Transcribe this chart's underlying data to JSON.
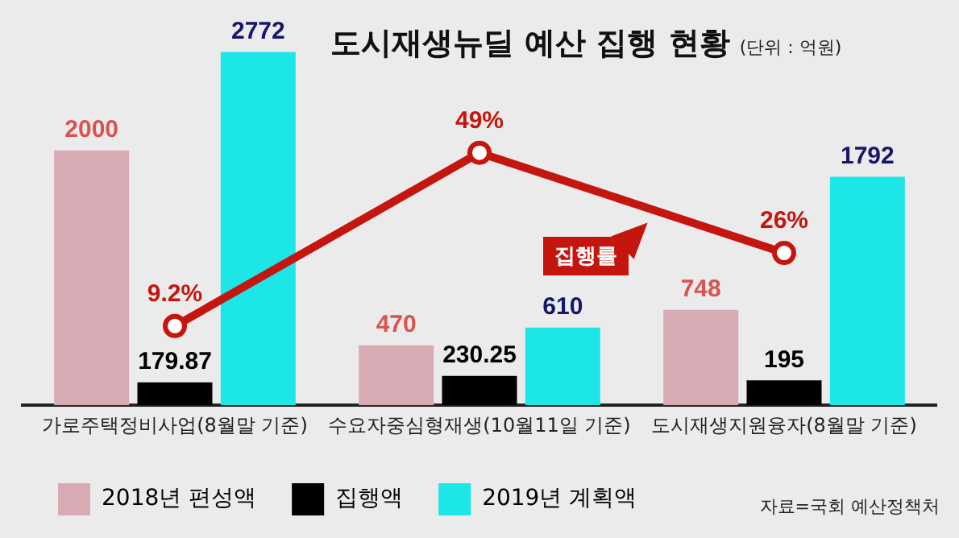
{
  "chart_data": {
    "type": "bar",
    "title": "도시재생뉴딜 예산 집행 현황",
    "subtitle": "(단위 : 억원)",
    "categories": [
      "가로주택정비사업(8월말 기준)",
      "수요자중심형재생(10월11일 기준)",
      "도시재생지원융자(8월말 기준)"
    ],
    "series": [
      {
        "name": "2018년 편성액",
        "color": "#d8aab4",
        "values": [
          2000,
          470,
          748
        ]
      },
      {
        "name": "집행액",
        "color": "#000000",
        "values": [
          179.87,
          230.25,
          195
        ]
      },
      {
        "name": "2019년 계획액",
        "color": "#1ce6e6",
        "values": [
          2772,
          610,
          1792
        ]
      },
      {
        "name": "집행률",
        "type": "line",
        "axis": "y2",
        "color": "#c4160e",
        "values": [
          9.2,
          49,
          26
        ],
        "value_labels": [
          "9.2%",
          "49%",
          "26%"
        ],
        "marker": "circle"
      }
    ],
    "ylim": [
      0,
      2800
    ],
    "y2lim": [
      -9,
      73
    ],
    "data_labels": true,
    "legend": "bottom",
    "grid": false,
    "tick_labels": "x",
    "annotations": [
      "자료=국회 예산정책처"
    ]
  }
}
